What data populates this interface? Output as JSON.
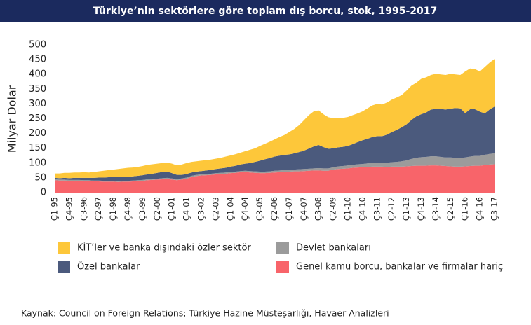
{
  "chart_data": {
    "type": "stacked-area",
    "title": "Türkiye’nin sektörlere göre toplam dış borcu, stok, 1995-2017",
    "y_label": "Milyar Dolar",
    "categories": [
      "Ç1-95",
      null,
      null,
      "Ç4-95",
      null,
      null,
      "Ç3-96",
      null,
      null,
      "Ç2-97",
      null,
      null,
      "Ç1-98",
      null,
      null,
      "Ç4-98",
      null,
      null,
      "Ç3-99",
      null,
      null,
      "Ç2-00",
      null,
      null,
      "Ç1-01",
      null,
      null,
      "Ç4-01",
      null,
      null,
      "Ç3-02",
      null,
      null,
      "Ç2-03",
      null,
      null,
      "Ç1-04",
      null,
      null,
      "Ç4-04",
      null,
      null,
      "Ç3-05",
      null,
      null,
      "Ç2-06",
      null,
      null,
      "Ç1-07",
      null,
      null,
      "Ç4-07",
      null,
      null,
      "Ç3-08",
      null,
      null,
      "Ç2-09",
      null,
      null,
      "Ç1-10",
      null,
      null,
      "Ç4-10",
      null,
      null,
      "Ç3-11",
      null,
      null,
      "Ç2-12",
      null,
      null,
      "Ç1-13",
      null,
      null,
      "Ç4-13",
      null,
      null,
      "Ç3-14",
      null,
      null,
      "Ç2-15",
      null,
      null,
      "Ç1-16",
      null,
      null,
      "Ç4-16",
      null,
      null,
      "Ç3-17"
    ],
    "series": [
      {
        "name": "Genel kamu borcu, bankalar ve firmalar hariç",
        "color": "#f8646a",
        "values": [
          42,
          41,
          41,
          40,
          40,
          40,
          39,
          39,
          38,
          38,
          37,
          37,
          37,
          36,
          37,
          37,
          38,
          39,
          40,
          42,
          43,
          44,
          45,
          46,
          44,
          42,
          44,
          47,
          53,
          56,
          58,
          59,
          60,
          62,
          63,
          64,
          66,
          67,
          69,
          70,
          68,
          67,
          66,
          66,
          67,
          68,
          69,
          70,
          71,
          72,
          72,
          73,
          74,
          75,
          75,
          74,
          74,
          78,
          80,
          81,
          82,
          84,
          85,
          86,
          87,
          88,
          88,
          88,
          87,
          88,
          88,
          88,
          89,
          90,
          91,
          91,
          91,
          92,
          92,
          91,
          90,
          89,
          88,
          88,
          89,
          90,
          91,
          91,
          93,
          95,
          96
        ]
      },
      {
        "name": "Devlet bankaları",
        "color": "#9b9b9b",
        "values": [
          3,
          3,
          3,
          3,
          3,
          3,
          3,
          3,
          3,
          3,
          3,
          3,
          3,
          3,
          3,
          3,
          3,
          3,
          3,
          3,
          3,
          3,
          4,
          4,
          4,
          4,
          4,
          4,
          4,
          4,
          4,
          4,
          4,
          4,
          4,
          4,
          4,
          4,
          4,
          4,
          5,
          5,
          5,
          5,
          5,
          6,
          6,
          6,
          6,
          6,
          7,
          7,
          7,
          7,
          8,
          8,
          8,
          8,
          9,
          9,
          10,
          10,
          11,
          11,
          12,
          12,
          13,
          13,
          14,
          15,
          16,
          18,
          20,
          24,
          27,
          29,
          30,
          31,
          31,
          30,
          29,
          30,
          30,
          29,
          30,
          32,
          33,
          33,
          35,
          36,
          37
        ]
      },
      {
        "name": "Özel bankalar",
        "color": "#4b5a7d",
        "values": [
          5,
          5,
          6,
          6,
          7,
          7,
          8,
          8,
          9,
          10,
          11,
          12,
          13,
          14,
          14,
          14,
          14,
          15,
          16,
          17,
          18,
          20,
          21,
          21,
          18,
          14,
          12,
          12,
          11,
          11,
          11,
          12,
          13,
          14,
          15,
          16,
          18,
          20,
          22,
          24,
          27,
          32,
          37,
          42,
          45,
          48,
          50,
          52,
          52,
          55,
          58,
          62,
          68,
          74,
          78,
          72,
          66,
          64,
          64,
          65,
          66,
          70,
          75,
          80,
          83,
          88,
          90,
          90,
          95,
          102,
          108,
          115,
          122,
          132,
          140,
          145,
          150,
          158,
          160,
          162,
          162,
          165,
          168,
          168,
          150,
          160,
          158,
          150,
          140,
          150,
          158
        ]
      },
      {
        "name": "KİT’ler ve banka dışındaki özler sektör",
        "color": "#fdc73a",
        "values": [
          15,
          16,
          17,
          18,
          18,
          18,
          19,
          18,
          20,
          21,
          23,
          24,
          25,
          27,
          28,
          30,
          30,
          30,
          31,
          32,
          32,
          31,
          30,
          31,
          32,
          32,
          35,
          37,
          36,
          35,
          35,
          35,
          35,
          35,
          36,
          38,
          38,
          39,
          40,
          42,
          45,
          46,
          50,
          52,
          55,
          58,
          63,
          67,
          76,
          82,
          91,
          103,
          113,
          119,
          117,
          111,
          107,
          102,
          99,
          98,
          98,
          98,
          97,
          98,
          103,
          107,
          109,
          107,
          109,
          110,
          110,
          109,
          114,
          116,
          114,
          120,
          119,
          117,
          119,
          117,
          117,
          118,
          114,
          113,
          141,
          138,
          136,
          136,
          157,
          159,
          161
        ]
      }
    ],
    "ylim": [
      0,
      500
    ],
    "yticks": [
      0,
      50,
      100,
      150,
      200,
      250,
      300,
      350,
      400,
      450,
      500
    ],
    "grid": false
  },
  "source": "Kaynak: Council on  Foreign Relations; Türkiye Hazine Müsteşarlığı, Havaer Analizleri"
}
